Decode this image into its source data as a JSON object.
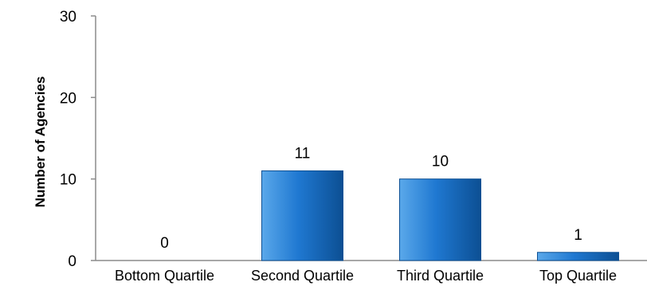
{
  "chart_data": {
    "type": "bar",
    "title": "",
    "xlabel": "",
    "ylabel": "Number of Agencies",
    "categories": [
      "Bottom Quartile",
      "Second Quartile",
      "Third Quartile",
      "Top Quartile"
    ],
    "values": [
      0,
      11,
      10,
      1
    ],
    "data_labels": [
      "0",
      "11",
      "10",
      "1"
    ],
    "ylim": [
      0,
      30
    ],
    "yticks": [
      0,
      10,
      20,
      30
    ],
    "ytick_labels": [
      "0",
      "10",
      "20",
      "30"
    ],
    "grid": false,
    "legend": "none",
    "colors": {
      "bar_light": "#5aa8ea",
      "bar_mid": "#1f78d1",
      "bar_dark": "#0c4f93",
      "axis": "#8c8c8c"
    }
  }
}
